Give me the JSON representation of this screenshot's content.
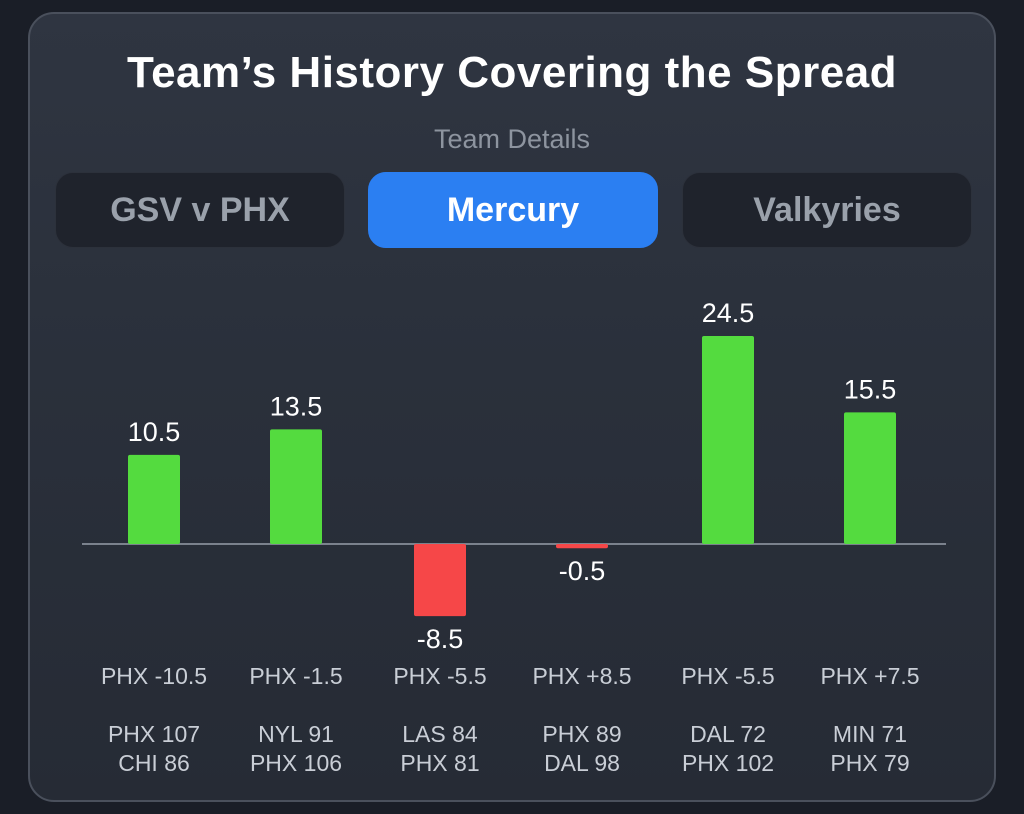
{
  "header": {
    "title": "Team’s History Covering the Spread",
    "subtitle": "Team Details"
  },
  "tabs": [
    {
      "label": "GSV v PHX",
      "active": false
    },
    {
      "label": "Mercury",
      "active": true
    },
    {
      "label": "Valkyries",
      "active": false
    }
  ],
  "colors": {
    "positive": "#54db3f",
    "negative": "#f64748",
    "accent": "#2b7ff2"
  },
  "chart_data": {
    "type": "bar",
    "title": "Team’s History Covering the Spread",
    "ylim": [
      -8.5,
      24.5
    ],
    "grid": false,
    "categories": [
      "PHX -10.5",
      "PHX -1.5",
      "PHX -5.5",
      "PHX +8.5",
      "PHX -5.5",
      "PHX +7.5"
    ],
    "values": [
      10.5,
      13.5,
      -8.5,
      -0.5,
      24.5,
      15.5
    ],
    "value_labels": [
      "10.5",
      "13.5",
      "-8.5",
      "-0.5",
      "24.5",
      "15.5"
    ],
    "scores": [
      [
        "PHX 107",
        "CHI 86"
      ],
      [
        "NYL 91",
        "PHX 106"
      ],
      [
        "LAS 84",
        "PHX 81"
      ],
      [
        "PHX 89",
        "DAL 98"
      ],
      [
        "DAL 72",
        "PHX 102"
      ],
      [
        "MIN 71",
        "PHX 79"
      ]
    ]
  }
}
